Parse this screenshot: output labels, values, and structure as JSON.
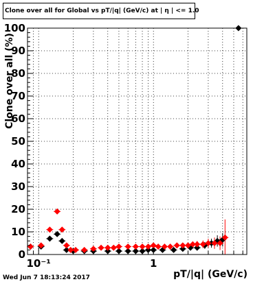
{
  "chart_data": {
    "type": "scatter",
    "title": "Clone  over all for Global vs pT/|q| (GeV/c) at |  η  | <= 1.0",
    "xlabel": "pT/|q| (GeV/c)",
    "ylabel": "Clone  over all (%)",
    "xscale": "log",
    "xlim": [
      0.08,
      6.5
    ],
    "ylim": [
      0,
      100
    ],
    "yticks": [
      0,
      10,
      20,
      30,
      40,
      50,
      60,
      70,
      80,
      90,
      100
    ],
    "xticks": [
      {
        "value": 0.1,
        "label": "10⁻¹"
      },
      {
        "value": 1,
        "label": "1"
      }
    ],
    "grid": true,
    "series": [
      {
        "color": "#000000",
        "marker": "diamond",
        "x": [
          0.085,
          0.105,
          0.125,
          0.145,
          0.16,
          0.175,
          0.2,
          0.25,
          0.3,
          0.4,
          0.5,
          0.6,
          0.7,
          0.8,
          0.9,
          1.0,
          1.2,
          1.5,
          1.8,
          2.1,
          2.4,
          2.8,
          3.2,
          3.6,
          4.0,
          5.5
        ],
        "y": [
          3.5,
          3.5,
          7,
          9,
          6,
          2,
          1.5,
          1.5,
          1.5,
          1.5,
          1.5,
          1.5,
          1.5,
          1.5,
          2,
          2,
          2,
          2,
          2.5,
          3,
          3,
          4,
          5,
          6,
          6.5,
          100
        ],
        "yerr": [
          0.5,
          0.5,
          1,
          1,
          1,
          0.5,
          0.4,
          0.4,
          0.4,
          0.4,
          0.4,
          0.4,
          0.4,
          0.4,
          0.5,
          0.5,
          0.5,
          0.6,
          0.8,
          1,
          1.2,
          1.5,
          2,
          2.5,
          3,
          0
        ]
      },
      {
        "color": "#ff0000",
        "marker": "diamond",
        "x": [
          0.085,
          0.105,
          0.125,
          0.145,
          0.16,
          0.175,
          0.19,
          0.21,
          0.25,
          0.3,
          0.35,
          0.4,
          0.45,
          0.5,
          0.6,
          0.7,
          0.8,
          0.9,
          1.0,
          1.1,
          1.25,
          1.4,
          1.6,
          1.8,
          2.0,
          2.2,
          2.4,
          2.7,
          3.0,
          3.4,
          3.8,
          4.2
        ],
        "y": [
          3.5,
          4,
          11,
          19,
          11,
          4,
          2,
          2,
          2,
          2.5,
          3,
          3,
          3,
          3.5,
          3.5,
          3.5,
          3.5,
          3.5,
          4,
          3.5,
          3.5,
          3.5,
          4,
          4,
          4,
          4.5,
          4.5,
          4.5,
          5,
          5,
          5,
          7.5
        ],
        "yerr": [
          1,
          0.5,
          1,
          1,
          1,
          0.5,
          0.3,
          0.3,
          0.3,
          0.4,
          0.4,
          0.4,
          0.4,
          0.5,
          0.5,
          0.5,
          0.5,
          0.6,
          0.7,
          0.7,
          0.8,
          0.9,
          1,
          1.1,
          1.2,
          1.3,
          1.5,
          1.7,
          2,
          2.5,
          3,
          8
        ]
      }
    ]
  },
  "footer": {
    "timestamp": "Wed Jun  7 18:13:24 2017"
  }
}
